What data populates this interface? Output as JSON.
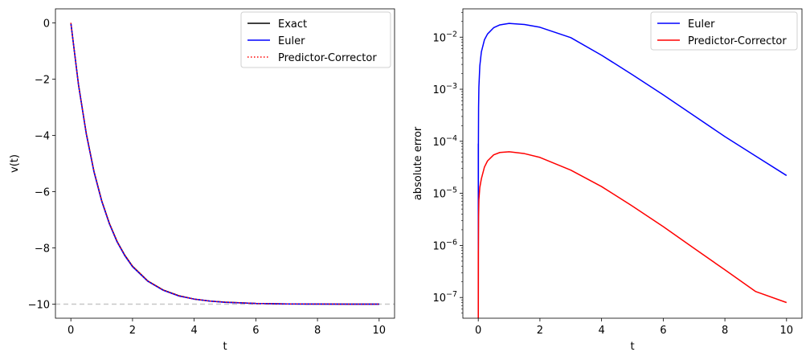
{
  "chart_data": [
    {
      "type": "line",
      "xlabel": "t",
      "ylabel": "v(t)",
      "xlim": [
        -0.5,
        10.5
      ],
      "ylim": [
        -10.5,
        0.5
      ],
      "xticks": [
        0,
        2,
        4,
        6,
        8,
        10
      ],
      "xtick_labels": [
        "0",
        "2",
        "4",
        "6",
        "8",
        "10"
      ],
      "yticks": [
        0,
        -2,
        -4,
        -6,
        -8,
        -10
      ],
      "ytick_labels": [
        "0",
        "−2",
        "−4",
        "−6",
        "−8",
        "−10"
      ],
      "reference_line": {
        "y": -10,
        "style": "dashed",
        "color": "#c8c8c8"
      },
      "legend_position": "top-right",
      "series": [
        {
          "name": "Exact",
          "color": "#000000",
          "style": "solid",
          "x": [
            0,
            0.25,
            0.5,
            0.75,
            1,
            1.25,
            1.5,
            1.75,
            2,
            2.5,
            3,
            3.5,
            4,
            4.5,
            5,
            6,
            7,
            8,
            9,
            10
          ],
          "y": [
            0,
            -2.21,
            -3.93,
            -5.28,
            -6.32,
            -7.13,
            -7.77,
            -8.26,
            -8.65,
            -9.18,
            -9.5,
            -9.7,
            -9.82,
            -9.89,
            -9.93,
            -9.975,
            -9.991,
            -9.997,
            -9.999,
            -10.0
          ]
        },
        {
          "name": "Euler",
          "color": "#0000ff",
          "style": "solid",
          "x": [
            0,
            0.25,
            0.5,
            0.75,
            1,
            1.25,
            1.5,
            1.75,
            2,
            2.5,
            3,
            3.5,
            4,
            4.5,
            5,
            6,
            7,
            8,
            9,
            10
          ],
          "y": [
            0,
            -2.22,
            -3.95,
            -5.3,
            -6.34,
            -7.15,
            -7.79,
            -8.28,
            -8.67,
            -9.19,
            -9.51,
            -9.71,
            -9.82,
            -9.89,
            -9.934,
            -9.976,
            -9.991,
            -9.997,
            -9.999,
            -10.0
          ]
        },
        {
          "name": "Predictor-Corrector",
          "color": "#ff0000",
          "style": "dotted",
          "x": [
            0,
            0.25,
            0.5,
            0.75,
            1,
            1.25,
            1.5,
            1.75,
            2,
            2.5,
            3,
            3.5,
            4,
            4.5,
            5,
            6,
            7,
            8,
            9,
            10
          ],
          "y": [
            0,
            -2.21,
            -3.93,
            -5.28,
            -6.32,
            -7.13,
            -7.77,
            -8.26,
            -8.65,
            -9.18,
            -9.5,
            -9.7,
            -9.82,
            -9.89,
            -9.93,
            -9.975,
            -9.991,
            -9.997,
            -9.999,
            -10.0
          ]
        }
      ]
    },
    {
      "type": "line",
      "xlabel": "t",
      "ylabel": "absolute error",
      "yscale": "log",
      "xlim": [
        -0.5,
        10.5
      ],
      "ylim": [
        4e-08,
        0.035
      ],
      "xticks": [
        0,
        2,
        4,
        6,
        8,
        10
      ],
      "xtick_labels": [
        "0",
        "2",
        "4",
        "6",
        "8",
        "10"
      ],
      "yticks": [
        1e-07,
        1e-06,
        1e-05,
        0.0001,
        0.001,
        0.01
      ],
      "ytick_exponents": [
        "−7",
        "−6",
        "−5",
        "−4",
        "−3",
        "−2"
      ],
      "ytick_base": "10",
      "legend_position": "top-right",
      "series": [
        {
          "name": "Euler",
          "color": "#0000ff",
          "style": "solid",
          "x": [
            0.001,
            0.005,
            0.01,
            0.02,
            0.05,
            0.1,
            0.2,
            0.3,
            0.5,
            0.7,
            1.0,
            1.5,
            2,
            3,
            4,
            5,
            6,
            7,
            8,
            9,
            10
          ],
          "y": [
            1e-08,
            9e-05,
            0.00045,
            0.0011,
            0.0028,
            0.0052,
            0.0089,
            0.0115,
            0.0152,
            0.0172,
            0.0184,
            0.0175,
            0.0155,
            0.0098,
            0.0045,
            0.0019,
            0.00078,
            0.00031,
            0.000123,
            5.2e-05,
            2.2e-05
          ]
        },
        {
          "name": "Predictor-Corrector",
          "color": "#ff0000",
          "style": "solid",
          "x": [
            0.001,
            0.005,
            0.01,
            0.02,
            0.05,
            0.1,
            0.2,
            0.3,
            0.5,
            0.7,
            1.0,
            1.5,
            2,
            3,
            4,
            5,
            6,
            7,
            8,
            9,
            10
          ],
          "y": [
            1e-08,
            8e-07,
            3.5e-06,
            7.5e-06,
            1.3e-05,
            1.9e-05,
            3.2e-05,
            4.2e-05,
            5.5e-05,
            6.1e-05,
            6.3e-05,
            5.8e-05,
            4.9e-05,
            2.8e-05,
            1.35e-05,
            5.7e-06,
            2.3e-06,
            8.8e-07,
            3.4e-07,
            1.3e-07,
            8e-08
          ]
        }
      ]
    }
  ]
}
